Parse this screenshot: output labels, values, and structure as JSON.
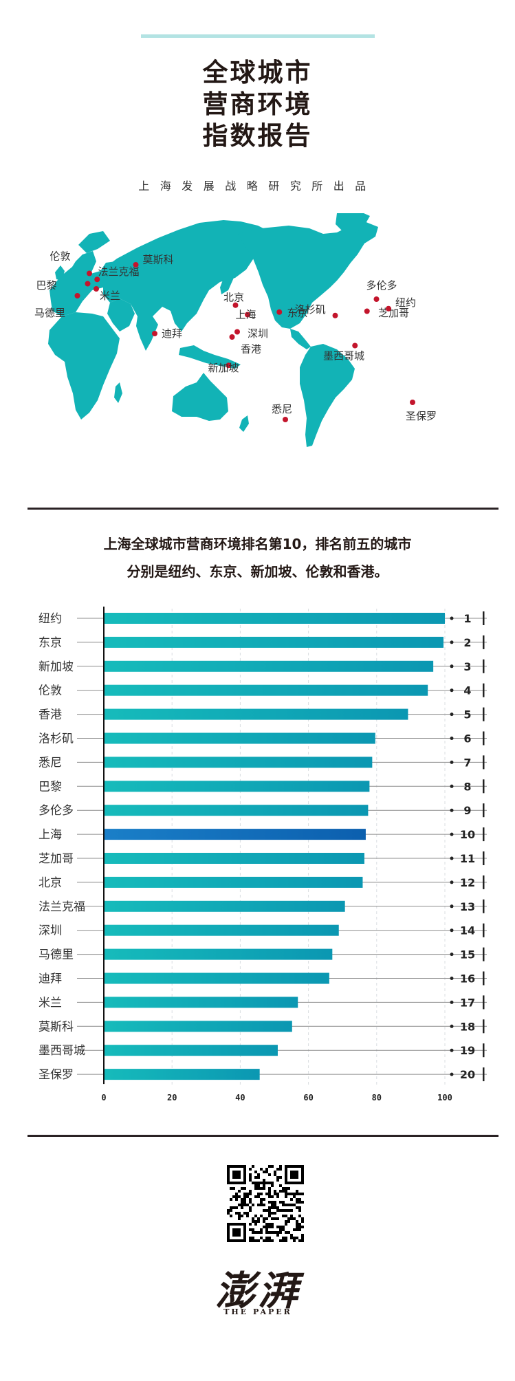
{
  "header": {
    "title_lines": [
      "全球城市",
      "营商环境",
      "指数报告"
    ],
    "subtitle": "上海发展战略研究所出品"
  },
  "map": {
    "land_color": "#12b3b6",
    "marker_color": "#c3152c",
    "cities": [
      {
        "name": "伦敦"
      },
      {
        "name": "巴黎"
      },
      {
        "name": "法兰克福"
      },
      {
        "name": "马德里"
      },
      {
        "name": "米兰"
      },
      {
        "name": "莫斯科"
      },
      {
        "name": "迪拜"
      },
      {
        "name": "北京"
      },
      {
        "name": "上海"
      },
      {
        "name": "东京"
      },
      {
        "name": "深圳"
      },
      {
        "name": "香港"
      },
      {
        "name": "新加坡"
      },
      {
        "name": "悉尼"
      },
      {
        "name": "洛杉矶"
      },
      {
        "name": "芝加哥"
      },
      {
        "name": "多伦多"
      },
      {
        "name": "纽约"
      },
      {
        "name": "墨西哥城"
      },
      {
        "name": "圣保罗"
      }
    ]
  },
  "headline": {
    "line1": "上海全球城市营商环境排名第10，排名前五的城市",
    "line2": "分别是纽约、东京、新加坡、伦敦和香港。"
  },
  "chart_data": {
    "type": "bar",
    "orientation": "horizontal",
    "categories": [
      "纽约",
      "东京",
      "新加坡",
      "伦敦",
      "香港",
      "洛杉矶",
      "悉尼",
      "巴黎",
      "多伦多",
      "上海",
      "芝加哥",
      "北京",
      "法兰克福",
      "深圳",
      "马德里",
      "迪拜",
      "米兰",
      "莫斯科",
      "墨西哥城",
      "圣保罗"
    ],
    "values": [
      100,
      99.6,
      96.6,
      95.0,
      89.2,
      79.6,
      78.7,
      77.9,
      77.5,
      76.8,
      76.4,
      75.9,
      70.7,
      68.9,
      67.0,
      66.1,
      56.9,
      55.2,
      51.0,
      45.7
    ],
    "ranks": [
      "1",
      "2",
      "3",
      "4",
      "5",
      "6",
      "7",
      "8",
      "9",
      "10",
      "11",
      "12",
      "13",
      "14",
      "15",
      "16",
      "17",
      "18",
      "19",
      "20"
    ],
    "highlight": "上海",
    "xticks": [
      "0",
      "20",
      "40",
      "60",
      "80",
      "100"
    ],
    "xlim": [
      0,
      100
    ],
    "grid": "vertical-dashed",
    "bar_color": "#14b4b8",
    "highlight_color": "#1167b5"
  },
  "footer": {
    "logo_cn": "澎湃",
    "logo_en": "THE PAPER"
  }
}
